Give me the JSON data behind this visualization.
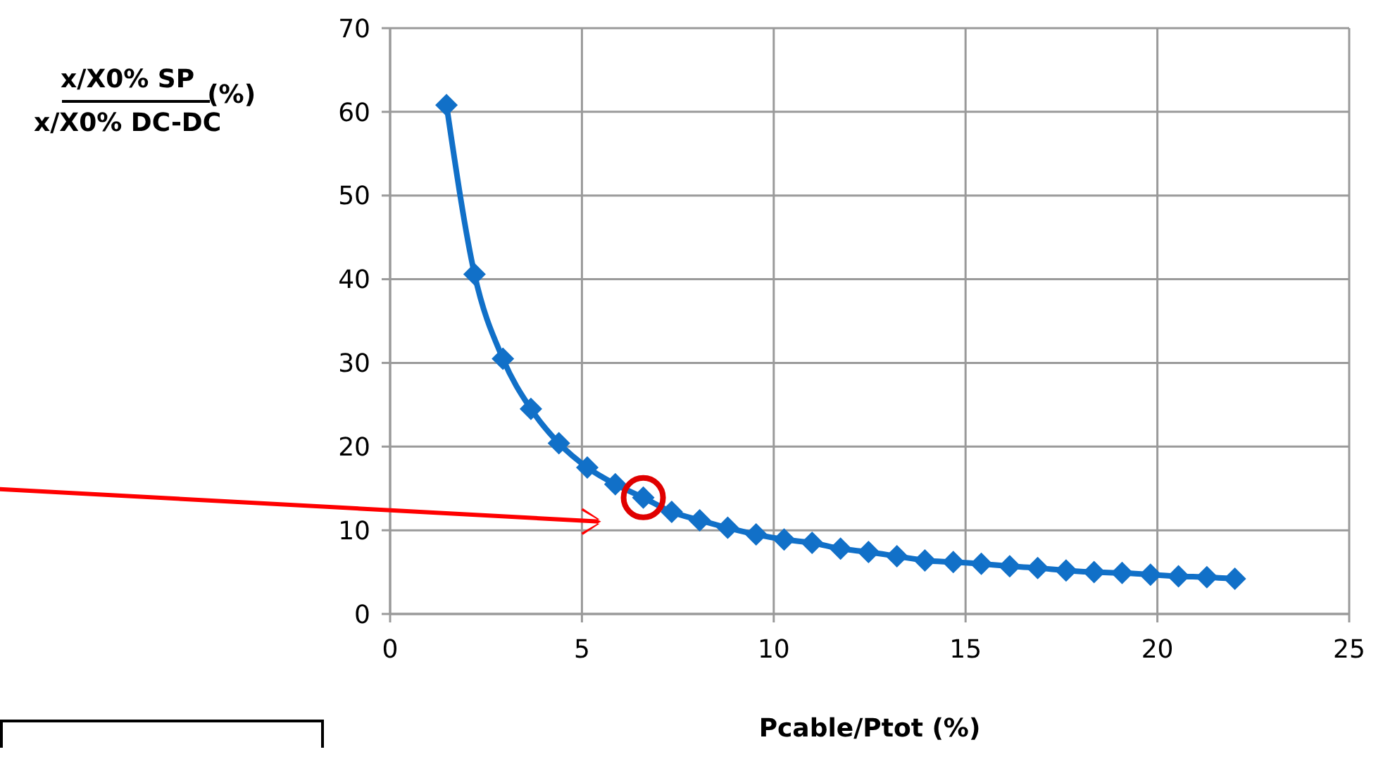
{
  "chart_data": {
    "type": "line",
    "xlabel": "Pcable/Ptot (%)",
    "ylabel": "x/X0% SP\nx/X0% DC-DC\n(%)",
    "x": [
      1.47,
      2.2,
      2.94,
      3.67,
      4.4,
      5.14,
      5.87,
      6.6,
      7.34,
      8.07,
      8.8,
      9.54,
      10.27,
      11.0,
      11.74,
      12.47,
      13.21,
      13.94,
      14.68,
      15.41,
      16.15,
      16.88,
      17.62,
      18.35,
      19.08,
      19.82,
      20.55,
      21.29,
      22.02
    ],
    "series": [
      {
        "color": "#1170c8",
        "values": [
          60.8,
          40.6,
          30.5,
          24.5,
          20.4,
          17.5,
          15.5,
          13.9,
          12.2,
          11.2,
          10.3,
          9.5,
          8.9,
          8.5,
          7.8,
          7.4,
          6.9,
          6.4,
          6.2,
          6.0,
          5.7,
          5.5,
          5.2,
          5.0,
          4.9,
          4.7,
          4.5,
          4.4,
          4.2
        ]
      }
    ],
    "xlim": [
      0,
      25
    ],
    "xticks": [
      0,
      5,
      10,
      15,
      20,
      25
    ],
    "ylim": [
      0,
      70
    ],
    "yticks": [
      0,
      10,
      20,
      30,
      40,
      50,
      60,
      70
    ],
    "grid": true,
    "marker": "diamond",
    "line_style": "solid",
    "legend": false
  }
}
